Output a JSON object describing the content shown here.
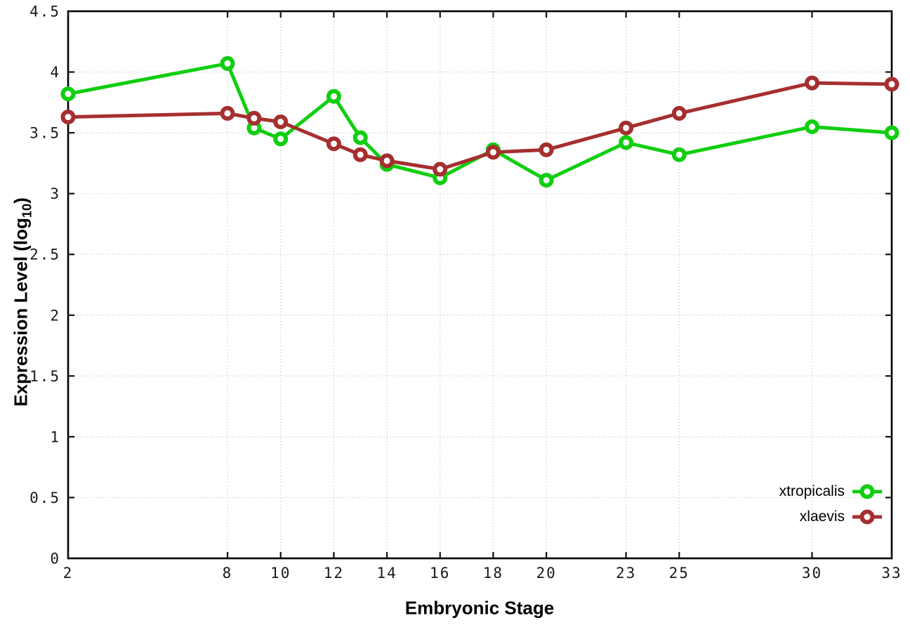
{
  "figure": {
    "background_color": "#ffffff",
    "border_color": "#000000",
    "grid_color": "#b4babf",
    "y_axis": {
      "title_prefix": "Expression Level (log",
      "title_subscript": "10",
      "title_suffix": ")"
    }
  },
  "chart_data": {
    "type": "line",
    "title": "",
    "xlabel": "Embryonic Stage",
    "ylabel": "Expression Level (log10)",
    "x": [
      2,
      8,
      9,
      10,
      12,
      13,
      14,
      16,
      18,
      20,
      23,
      25,
      30,
      33
    ],
    "x_ticks": [
      2,
      8,
      10,
      12,
      14,
      16,
      18,
      20,
      23,
      25,
      30,
      33
    ],
    "y_ticks": [
      0,
      0.5,
      1,
      1.5,
      2,
      2.5,
      3,
      3.5,
      4,
      4.5
    ],
    "xlim": [
      2,
      33
    ],
    "ylim": [
      0,
      4.5
    ],
    "grid": true,
    "legend_position": "bottom-right",
    "marker": "open-circle",
    "series": [
      {
        "name": "xtropicalis",
        "color": "#10CE10",
        "values": [
          3.82,
          4.07,
          3.54,
          3.45,
          3.8,
          3.46,
          3.24,
          3.13,
          3.36,
          3.11,
          3.42,
          3.32,
          3.55,
          3.5
        ]
      },
      {
        "name": "xlaevis",
        "color": "#A52F2F",
        "values": [
          3.63,
          3.66,
          3.62,
          3.59,
          3.41,
          3.32,
          3.27,
          3.2,
          3.34,
          3.36,
          3.54,
          3.66,
          3.91,
          3.9
        ]
      }
    ]
  }
}
